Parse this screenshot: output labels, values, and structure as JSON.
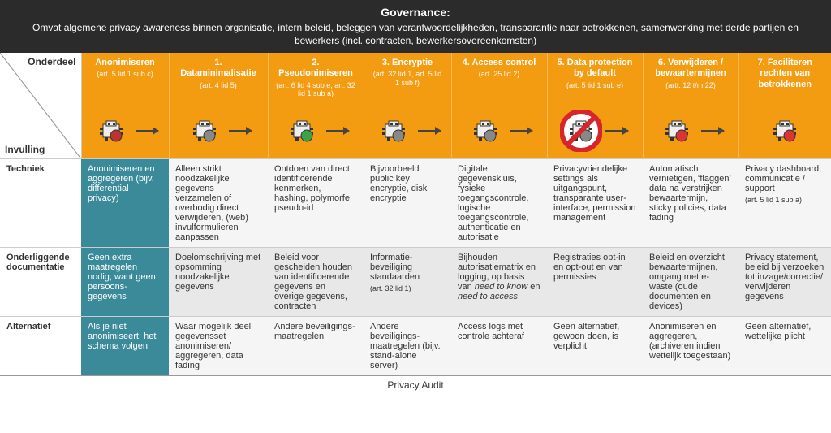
{
  "header": {
    "title": "Governance:",
    "subtitle": "Omvat algemene privacy awareness binnen organisatie, intern beleid, beleggen van verantwoordelijkheden, transparantie naar betrokkenen, samenwerking met derde partijen en bewerkers (incl. contracten, bewerkersovereenkomsten)"
  },
  "corner": {
    "top": "Onderdeel",
    "bottom": "Invulling"
  },
  "columns": [
    {
      "title": "Anonimiseren",
      "ref": "(art. 5 lid 1 sub c)",
      "icon_accent": "#b33",
      "prohibit": false
    },
    {
      "title": "1. Dataminimalisatie",
      "ref": "(art. 4 lid 5)",
      "icon_accent": "#888",
      "prohibit": false
    },
    {
      "title": "2. Pseudonimiseren",
      "ref": "(art. 6 lid 4 sub e, art. 32 lid 1 sub a)",
      "icon_accent": "#3aa34a",
      "prohibit": false
    },
    {
      "title": "3. Encryptie",
      "ref": "(art. 32 lid 1, art. 5 lid 1 sub f)",
      "icon_accent": "#888",
      "prohibit": false
    },
    {
      "title": "4. Access control",
      "ref": "(art. 25 lid 2)",
      "icon_accent": "#888",
      "prohibit": false
    },
    {
      "title": "5. Data protection by default",
      "ref": "(art. 5 lid 1 sub e)",
      "icon_accent": "#888",
      "prohibit": true
    },
    {
      "title": "6. Verwijderen / bewaartermijnen",
      "ref": "(artt. 12 t/m 22)",
      "icon_accent": "#d33",
      "prohibit": false
    },
    {
      "title": "7. Faciliteren rechten van betrokkenen",
      "ref": "",
      "icon_accent": "#d33",
      "prohibit": false
    }
  ],
  "rows": [
    {
      "label": "Techniek",
      "cells": [
        "Anonimiseren en aggregeren (bijv. differential privacy)",
        "Alleen strikt noodzakelijke gegevens verzamelen of overbodig direct verwijderen, (web) invulformulieren aanpassen",
        "Ontdoen van direct identificerende kenmerken, hashing, polymorfe pseudo-id",
        "Bijvoorbeeld public key encryptie, disk encryptie",
        "Digitale gegevenskluis, fysieke toegangscontrole, logische toegangscontrole, authenticatie en autorisatie",
        "Privacyvriendelijke settings als uitgangspunt, transparante user-interface, permission management",
        "Automatisch vernietigen, ‘flaggen’ data na verstrijken bewaartermijn, sticky policies, data fading",
        "Privacy dashboard, communicatie / support\n(art. 5 lid 1 sub a)"
      ]
    },
    {
      "label": "Onderliggende documentatie",
      "cells": [
        "Geen extra maatregelen nodig, want geen persoons-gegevens",
        "Doelomschrijving met opsomming noodzakelijke gegevens",
        "Beleid voor gescheiden houden van identificerende gegevens en overige gegevens, contracten",
        "Informatie-beveiliging standaarden\n(art. 32 lid 1)",
        "Bijhouden autorisatiematrix en logging, op basis van need to know en need to access",
        "Registraties opt-in en opt-out en van permissies",
        "Beleid en overzicht bewaartermijnen, omgang met e-waste (oude documenten en devices)",
        "Privacy statement, beleid bij verzoeken tot inzage/correctie/ verwijderen gegevens"
      ]
    },
    {
      "label": "Alternatief",
      "cells": [
        "Als je niet anonimiseert: het schema volgen",
        "Waar mogelijk deel gegevensset anonimiseren/ aggregeren, data fading",
        "Andere beveiligings-maatregelen",
        "Andere beveiligings-maatregelen (bijv. stand-alone server)",
        "Access logs met controle achteraf",
        "Geen alternatief, gewoon doen, is verplicht",
        "Anonimiseren en aggregeren, (archiveren indien wettelijk toegestaan)",
        "Geen alternatief, wettelijke plicht"
      ]
    }
  ],
  "footer": "Privacy Audit",
  "style": {
    "header_bg": "#2b2b2b",
    "orange": "#f39c12",
    "teal": "#3a8a99",
    "grid": "#cccccc",
    "row_light": "#f5f5f5",
    "row_dark": "#e8e8e8"
  }
}
